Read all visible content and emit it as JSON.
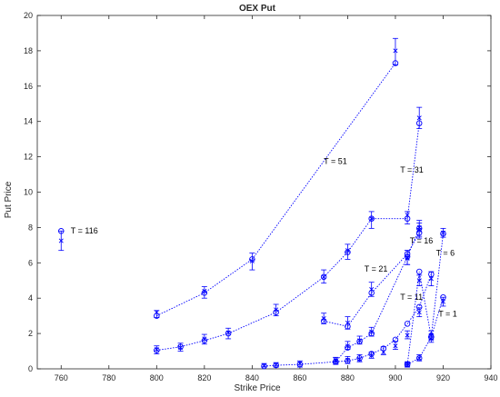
{
  "chart_data": {
    "type": "scatter",
    "title": "OEX Put",
    "xlabel": "Strike Price",
    "ylabel": "Put Price",
    "xlim": [
      750,
      940
    ],
    "ylim": [
      0,
      20
    ],
    "xticks": [
      760,
      780,
      800,
      820,
      840,
      860,
      880,
      900,
      920,
      940
    ],
    "yticks": [
      0,
      2,
      4,
      6,
      8,
      10,
      12,
      14,
      16,
      18,
      20
    ],
    "grid": false,
    "color": "#0000ff",
    "series": [
      {
        "name": "T = 116",
        "line": false,
        "x": [
          760
        ],
        "circle": [
          7.8
        ],
        "model": [
          7.25
        ],
        "err_low": [
          6.7
        ],
        "err_high": [
          7.8
        ],
        "label": {
          "x": 764,
          "y": 7.65
        }
      },
      {
        "name": "T = 51",
        "line": true,
        "x": [
          800,
          820,
          840,
          900
        ],
        "circle": [
          3.0,
          4.3,
          6.2,
          17.3
        ],
        "model": [
          3.2,
          4.4,
          6.1,
          18.0
        ],
        "err_low": [
          2.9,
          4.0,
          5.6,
          17.2
        ],
        "err_high": [
          3.3,
          4.65,
          6.55,
          18.7
        ],
        "label": {
          "x": 870,
          "y": 11.6
        }
      },
      {
        "name": "T = 31",
        "line": true,
        "x": [
          800,
          810,
          820,
          830,
          850,
          870,
          880,
          890,
          905,
          910
        ],
        "circle": [
          1.05,
          1.25,
          1.6,
          2.0,
          3.2,
          5.2,
          6.6,
          8.5,
          8.5,
          13.9
        ],
        "model": [
          1.1,
          1.2,
          1.7,
          2.05,
          3.35,
          5.2,
          6.7,
          8.5,
          8.7,
          14.2
        ],
        "err_low": [
          0.85,
          1.0,
          1.4,
          1.7,
          3.0,
          4.85,
          6.2,
          7.95,
          8.2,
          13.6
        ],
        "err_high": [
          1.3,
          1.45,
          1.95,
          2.3,
          3.65,
          5.6,
          7.05,
          8.9,
          8.9,
          14.8
        ],
        "label": {
          "x": 902,
          "y": 11.1
        }
      },
      {
        "name": "T = 21",
        "line": true,
        "x": [
          870,
          880,
          890,
          905,
          910
        ],
        "circle": [
          2.7,
          2.4,
          4.3,
          6.5,
          7.7
        ],
        "model": [
          2.85,
          2.6,
          4.5,
          6.3,
          8.0
        ],
        "err_low": [
          2.55,
          2.25,
          4.1,
          5.9,
          7.4
        ],
        "err_high": [
          3.15,
          2.95,
          4.9,
          6.7,
          8.4
        ],
        "label": {
          "x": 887,
          "y": 5.5
        }
      },
      {
        "name": "T = 16",
        "line": true,
        "x": [
          845,
          850,
          860,
          875,
          880,
          885,
          890,
          905,
          910
        ],
        "circle": [
          0.15,
          0.2,
          0.25,
          0.4,
          1.2,
          1.55,
          2.0,
          6.35,
          7.95
        ],
        "model": [
          0.2,
          0.25,
          0.3,
          0.45,
          1.3,
          1.6,
          2.1,
          6.25,
          7.85
        ],
        "err_low": [
          0.1,
          0.1,
          0.1,
          0.25,
          1.1,
          1.4,
          1.85,
          5.9,
          7.5
        ],
        "err_high": [
          0.3,
          0.35,
          0.45,
          0.65,
          1.55,
          1.85,
          2.35,
          6.7,
          8.25
        ],
        "label": {
          "x": 906,
          "y": 7.1
        }
      },
      {
        "name": "T = 11",
        "line": true,
        "x": [
          875,
          880,
          885,
          890,
          895,
          900,
          905,
          910,
          915
        ],
        "circle": [
          0.4,
          0.45,
          0.6,
          0.85,
          1.15,
          1.65,
          2.55,
          3.5,
          5.35
        ],
        "model": [
          0.5,
          0.5,
          0.55,
          0.75,
          0.95,
          1.3,
          1.9,
          3.2,
          5.1
        ],
        "err_low": [
          0.3,
          0.3,
          0.4,
          0.6,
          0.8,
          1.1,
          1.7,
          2.95,
          4.7
        ],
        "err_high": [
          0.65,
          0.7,
          0.8,
          0.95,
          1.25,
          1.55,
          2.15,
          3.45,
          5.5
        ],
        "label": {
          "x": 902,
          "y": 3.9
        }
      },
      {
        "name": "T = 6",
        "line": true,
        "x": [
          905,
          910,
          915,
          920
        ],
        "circle": [
          0.25,
          5.5,
          1.8,
          7.65
        ],
        "model": [
          0.3,
          5.0,
          1.9,
          7.7
        ],
        "err_low": [
          0.15,
          4.7,
          1.65,
          7.45
        ],
        "err_high": [
          0.4,
          5.3,
          2.15,
          7.95
        ],
        "label": {
          "x": 917,
          "y": 6.4
        }
      },
      {
        "name": "T = 1",
        "line": true,
        "x": [
          905,
          910,
          915,
          920
        ],
        "circle": [
          0.25,
          0.6,
          1.8,
          4.05
        ],
        "model": [
          0.2,
          0.6,
          1.7,
          3.8
        ],
        "err_low": [
          0.1,
          0.45,
          1.5,
          3.55
        ],
        "err_high": [
          0.35,
          0.8,
          1.95,
          4.05
        ],
        "label": {
          "x": 918,
          "y": 2.95
        }
      }
    ]
  }
}
